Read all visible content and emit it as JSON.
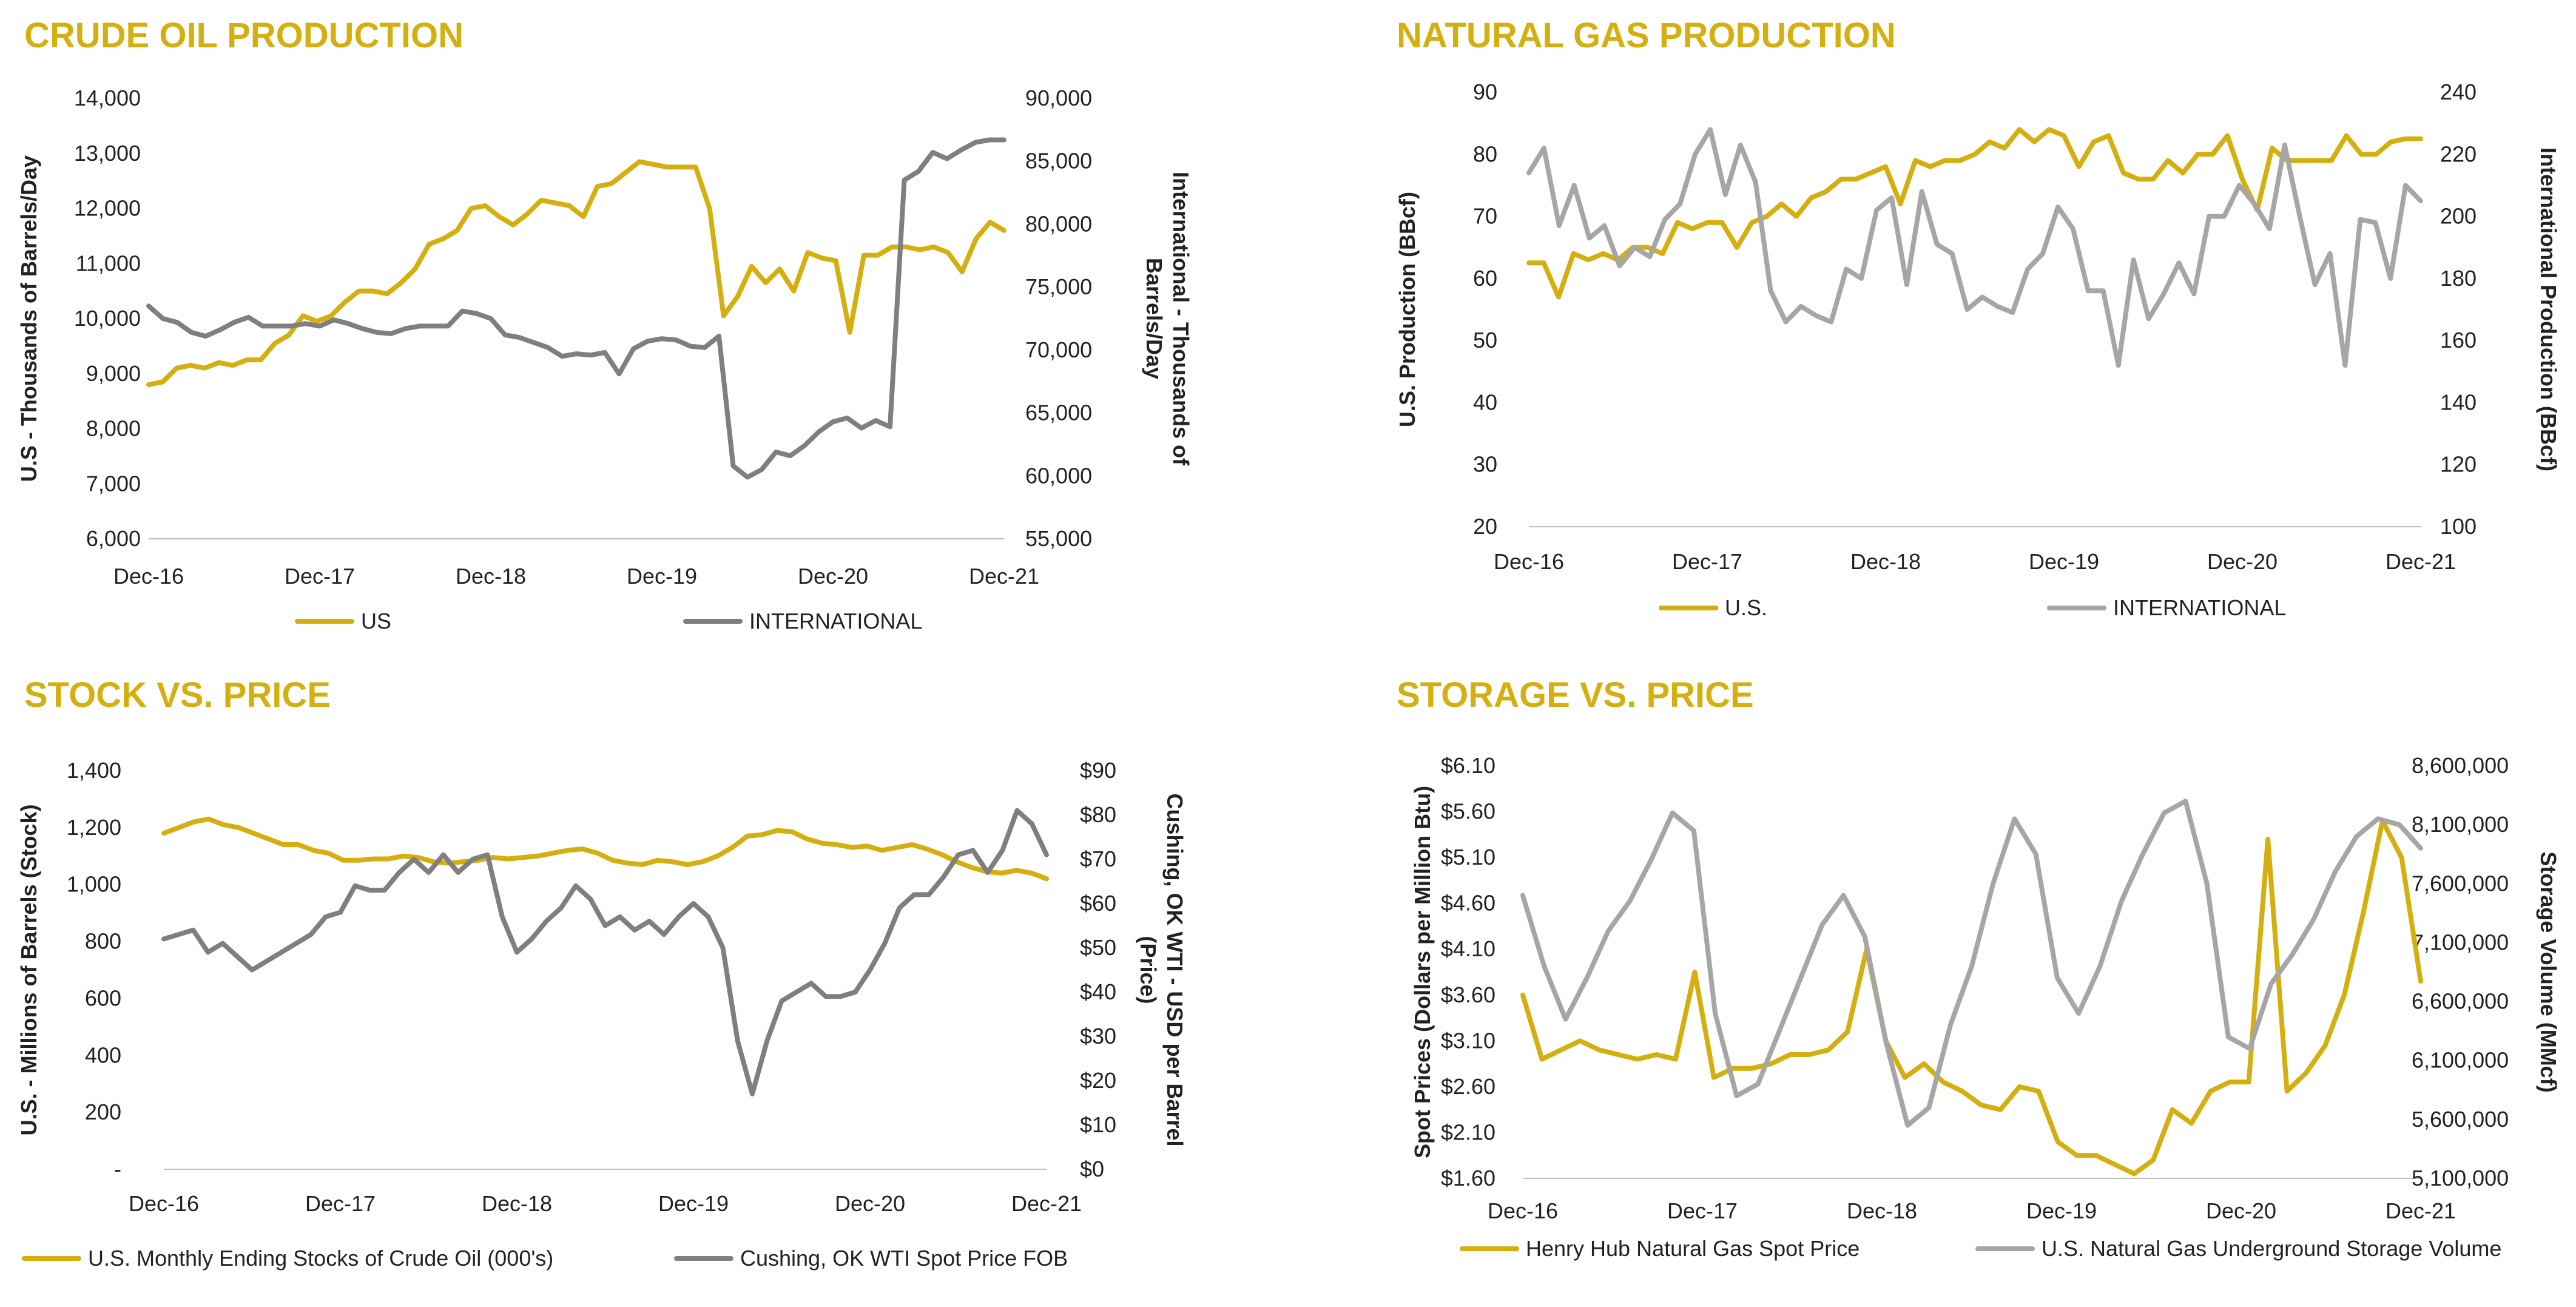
{
  "chart_data": [
    {
      "type": "line",
      "title": "CRUDE OIL PRODUCTION",
      "ylabel": "U.S - Thousands of Barrels/Day",
      "y2label": "International - Thousands of Barrels/Day",
      "x_ticks": [
        "Dec-16",
        "Dec-17",
        "Dec-18",
        "Dec-19",
        "Dec-20",
        "Dec-21"
      ],
      "x_range": [
        0,
        64
      ],
      "ylim": [
        6000,
        14000
      ],
      "y_ticks": [
        "6,000",
        "7,000",
        "8,000",
        "9,000",
        "10,000",
        "11,000",
        "12,000",
        "13,000",
        "14,000"
      ],
      "y2lim": [
        55000,
        90000
      ],
      "y2_ticks": [
        "55,000",
        "60,000",
        "65,000",
        "70,000",
        "75,000",
        "80,000",
        "85,000",
        "90,000"
      ],
      "grid": false,
      "legend": "bottom",
      "series": [
        {
          "name": "US",
          "color": "#D4AF0F",
          "axis": "left",
          "values": [
            8800,
            8850,
            9100,
            9150,
            9100,
            9200,
            9150,
            9250,
            9250,
            9550,
            9700,
            10050,
            9950,
            10050,
            10300,
            10500,
            10500,
            10450,
            10650,
            10900,
            11350,
            11450,
            11600,
            12000,
            12050,
            11850,
            11700,
            11900,
            12150,
            12100,
            12050,
            11850,
            12400,
            12450,
            12650,
            12850,
            12800,
            12750,
            12750,
            12750,
            12000,
            10050,
            10400,
            10950,
            10650,
            10900,
            10500,
            11200,
            11100,
            11050,
            9750,
            11150,
            11150,
            11300,
            11300,
            11250,
            11300,
            11200,
            10850,
            11450,
            11750,
            11600
          ]
        },
        {
          "name": "INTERNATIONAL",
          "color": "#7F7F7F",
          "axis": "right",
          "values": [
            73500,
            72500,
            72200,
            71400,
            71100,
            71600,
            72200,
            72600,
            71900,
            71900,
            71900,
            72100,
            71900,
            72400,
            72100,
            71700,
            71400,
            71300,
            71700,
            71900,
            71900,
            71900,
            73100,
            72900,
            72500,
            71200,
            71000,
            70600,
            70200,
            69500,
            69700,
            69600,
            69800,
            68100,
            70100,
            70700,
            70900,
            70800,
            70300,
            70200,
            71100,
            60800,
            59900,
            60500,
            61900,
            61600,
            62400,
            63500,
            64300,
            64600,
            63800,
            64400,
            63900,
            83500,
            84200,
            85700,
            85200,
            85900,
            86500,
            86700,
            86700
          ]
        }
      ]
    },
    {
      "type": "line",
      "title": "NATURAL GAS PRODUCTION",
      "ylabel": "U.S.  Production (BBcf)",
      "y2label": "International Production (BBcf)",
      "x_ticks": [
        "Dec-16",
        "Dec-17",
        "Dec-18",
        "Dec-19",
        "Dec-20",
        "Dec-21"
      ],
      "x_range": [
        0,
        60
      ],
      "ylim": [
        20,
        90
      ],
      "y_ticks": [
        "20",
        "30",
        "40",
        "50",
        "60",
        "70",
        "80",
        "90"
      ],
      "y2lim": [
        100,
        240
      ],
      "y2_ticks": [
        "100",
        "120",
        "140",
        "160",
        "180",
        "200",
        "220",
        "240"
      ],
      "grid": false,
      "legend": "bottom",
      "series": [
        {
          "name": "U.S.",
          "color": "#D4AF0F",
          "axis": "left",
          "values": [
            62.5,
            62.5,
            57,
            64,
            63,
            64,
            63,
            65,
            65,
            64,
            69,
            68,
            69,
            69,
            65,
            69,
            70,
            72,
            70,
            73,
            74,
            76,
            76,
            77,
            78,
            72,
            79,
            78,
            79,
            79,
            80,
            82,
            81,
            84,
            82,
            84,
            83,
            78,
            82,
            83,
            77,
            76,
            76,
            79,
            77,
            80,
            80,
            83,
            76,
            71,
            81,
            79,
            79,
            79,
            79,
            83,
            80,
            80,
            82,
            82.5,
            82.5
          ]
        },
        {
          "name": "INTERNATIONAL",
          "color": "#A6A6A6",
          "axis": "right",
          "values": [
            214,
            222,
            197,
            210,
            193,
            197,
            184,
            190,
            187,
            199,
            204,
            220,
            228,
            207,
            223,
            211,
            176,
            166,
            171,
            168,
            166,
            183,
            180,
            202,
            206,
            178,
            208,
            191,
            188,
            170,
            174,
            171,
            169,
            183,
            188,
            203,
            196,
            176,
            176,
            152,
            186,
            167,
            175,
            185,
            175,
            200,
            200,
            210,
            204,
            196,
            223,
            200,
            178,
            188,
            152,
            199,
            198,
            180,
            210,
            205
          ]
        }
      ]
    },
    {
      "type": "line",
      "title": "STOCK VS. PRICE",
      "ylabel": "U.S. - Millions of Barrels (Stock)",
      "y2label": "Cushing, OK WTI - USD per Barrel (Price)",
      "x_ticks": [
        "Dec-16",
        "Dec-17",
        "Dec-18",
        "Dec-19",
        "Dec-20",
        "Dec-21"
      ],
      "x_range": [
        0,
        60
      ],
      "ylim": [
        0,
        1400
      ],
      "y_ticks": [
        "-",
        "200",
        "400",
        "600",
        "800",
        "1,000",
        "1,200",
        "1,400"
      ],
      "y2lim": [
        0,
        90
      ],
      "y2_ticks": [
        "$0",
        "$10",
        "$20",
        "$30",
        "$40",
        "$50",
        "$60",
        "$70",
        "$80",
        "$90"
      ],
      "grid": false,
      "legend": "bottom",
      "series": [
        {
          "name": "U.S. Monthly Ending Stocks of Crude Oil (000's)",
          "color": "#D4AF0F",
          "axis": "left",
          "values": [
            1180,
            1200,
            1220,
            1230,
            1210,
            1200,
            1180,
            1160,
            1140,
            1140,
            1120,
            1110,
            1085,
            1085,
            1090,
            1090,
            1100,
            1095,
            1080,
            1075,
            1080,
            1085,
            1095,
            1090,
            1095,
            1100,
            1110,
            1120,
            1125,
            1110,
            1085,
            1075,
            1070,
            1085,
            1080,
            1070,
            1080,
            1100,
            1130,
            1170,
            1175,
            1190,
            1185,
            1160,
            1145,
            1140,
            1130,
            1135,
            1120,
            1130,
            1140,
            1125,
            1105,
            1080,
            1060,
            1045,
            1040,
            1050,
            1040,
            1020
          ]
        },
        {
          "name": "Cushing, OK WTI Spot Price FOB",
          "color": "#7F7F7F",
          "axis": "right",
          "values": [
            52,
            53,
            54,
            49,
            51,
            48,
            45,
            47,
            49,
            51,
            53,
            57,
            58,
            64,
            63,
            63,
            67,
            70,
            67,
            71,
            67,
            70,
            71,
            57,
            49,
            52,
            56,
            59,
            64,
            61,
            55,
            57,
            54,
            56,
            53,
            57,
            60,
            57,
            50,
            29,
            17,
            29,
            38,
            40,
            42,
            39,
            39,
            40,
            45,
            51,
            59,
            62,
            62,
            66,
            71,
            72,
            67,
            72,
            81,
            78,
            71
          ]
        }
      ]
    },
    {
      "type": "line",
      "title": "STORAGE VS. PRICE",
      "ylabel": "Spot Prices (Dollars per Million Btu)",
      "y2label": "Storage Volume (MMcf)",
      "x_ticks": [
        "Dec-16",
        "Dec-17",
        "Dec-18",
        "Dec-19",
        "Dec-20",
        "Dec-21"
      ],
      "x_range": [
        0,
        60
      ],
      "ylim": [
        1.6,
        6.1
      ],
      "y_ticks": [
        "$1.60",
        "$2.10",
        "$2.60",
        "$3.10",
        "$3.60",
        "$4.10",
        "$4.60",
        "$5.10",
        "$5.60",
        "$6.10"
      ],
      "y2lim": [
        5100000,
        8600000
      ],
      "y2_ticks": [
        "5,100,000",
        "5,600,000",
        "6,100,000",
        "6,600,000",
        "7,100,000",
        "7,600,000",
        "8,100,000",
        "8,600,000"
      ],
      "grid": false,
      "legend": "bottom",
      "series": [
        {
          "name": "Henry Hub Natural Gas Spot Price",
          "color": "#D4AF0F",
          "axis": "left",
          "values": [
            3.6,
            2.9,
            3.0,
            3.1,
            3.0,
            2.95,
            2.9,
            2.95,
            2.9,
            3.85,
            2.7,
            2.8,
            2.8,
            2.85,
            2.95,
            2.95,
            3.0,
            3.2,
            4.1,
            3.1,
            2.7,
            2.85,
            2.65,
            2.55,
            2.4,
            2.35,
            2.6,
            2.55,
            2.0,
            1.85,
            1.85,
            1.75,
            1.65,
            1.8,
            2.35,
            2.2,
            2.55,
            2.65,
            2.65,
            5.3,
            2.55,
            2.75,
            3.05,
            3.6,
            4.5,
            5.5,
            5.1,
            3.75
          ]
        },
        {
          "name": "U.S. Natural Gas Underground Storage Volume",
          "color": "#A6A6A6",
          "axis": "right",
          "values": [
            7500000,
            6900000,
            6450000,
            6800000,
            7200000,
            7450000,
            7800000,
            8200000,
            8050000,
            6500000,
            5800000,
            5900000,
            6350000,
            6800000,
            7250000,
            7500000,
            7150000,
            6250000,
            5550000,
            5700000,
            6400000,
            6900000,
            7600000,
            8150000,
            7850000,
            6800000,
            6500000,
            6900000,
            7450000,
            7850000,
            8200000,
            8300000,
            7600000,
            6300000,
            6200000,
            6750000,
            7000000,
            7300000,
            7700000,
            8000000,
            8150000,
            8100000,
            7900000
          ]
        }
      ]
    }
  ]
}
